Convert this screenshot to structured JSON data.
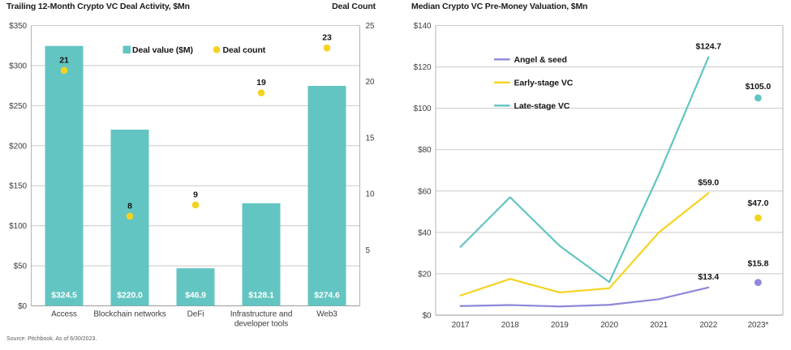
{
  "page": {
    "source_note": "Source: Pitchbook. As of 6/30/2023."
  },
  "colors": {
    "teal": "#63C5C1",
    "yellow": "#F4D320",
    "purple": "#8E87DA",
    "grid": "#C9C9C9",
    "plot_border": "#B3B3B3",
    "axis_line": "#9A9A9A"
  },
  "chart_data": [
    {
      "type": "bar",
      "title": "Trailing 12-Month Crypto VC Deal Activity, $Mn",
      "right_axis_label": "Deal Count",
      "categories": [
        "Access",
        "Blockchain networks",
        "DeFi",
        "Infrastructure and\ndeveloper tools",
        "Web3"
      ],
      "left_axis": {
        "min": 0,
        "max": 350,
        "ticks": [
          "$350",
          "$300",
          "$250",
          "$200",
          "$150",
          "$100",
          "$50",
          "$0"
        ]
      },
      "right_axis": {
        "min": 0,
        "max": 25,
        "ticks": [
          "25",
          "20",
          "15",
          "10",
          "5"
        ]
      },
      "series": [
        {
          "name": "Deal value ($M)",
          "kind": "bar",
          "axis": "left",
          "color": "teal",
          "values": [
            324.5,
            220.0,
            46.9,
            128.1,
            274.6
          ],
          "value_labels": [
            "$324.5",
            "$220.0",
            "$46.9",
            "$128.1",
            "$274.6"
          ]
        },
        {
          "name": "Deal count",
          "kind": "point",
          "axis": "right",
          "color": "yellow",
          "values": [
            21,
            8,
            9,
            19,
            23
          ],
          "value_labels": [
            "21",
            "8",
            "9",
            "19",
            "23"
          ]
        }
      ],
      "legend": [
        {
          "label": "Deal value ($M)",
          "swatch": "square",
          "color": "teal"
        },
        {
          "label": "Deal count",
          "swatch": "dot",
          "color": "yellow"
        }
      ],
      "legend_position": "top-center-inside",
      "grid": true
    },
    {
      "type": "line",
      "title": "Median Crypto VC Pre-Money Valuation, $Mn",
      "x_labels": [
        "2017",
        "2018",
        "2019",
        "2020",
        "2021",
        "2022",
        "2023*"
      ],
      "y_axis": {
        "min": 0,
        "max": 140,
        "ticks": [
          "$140",
          "$120",
          "$100",
          "$80",
          "$60",
          "$40",
          "$20",
          "$0"
        ]
      },
      "series": [
        {
          "name": "Angel & seed",
          "color": "purple",
          "line_values": [
            4.4,
            4.9,
            4.2,
            5.0,
            7.7,
            13.4
          ],
          "end_label": "$13.4",
          "dot_value": 15.8,
          "dot_label": "$15.8"
        },
        {
          "name": "Early-stage VC",
          "color": "yellow",
          "line_values": [
            9.5,
            17.5,
            11.0,
            13.0,
            40.0,
            59.0
          ],
          "end_label": "$59.0",
          "dot_value": 47.0,
          "dot_label": "$47.0"
        },
        {
          "name": "Late-stage VC",
          "color": "teal",
          "line_values": [
            33.0,
            57.0,
            33.5,
            16.0,
            68.0,
            124.7
          ],
          "end_label": "$124.7",
          "dot_value": 105.0,
          "dot_label": "$105.0"
        }
      ],
      "legend": [
        {
          "label": "Angel & seed",
          "swatch": "line",
          "color": "purple"
        },
        {
          "label": "Early-stage VC",
          "swatch": "line",
          "color": "yellow"
        },
        {
          "label": "Late-stage VC",
          "swatch": "line",
          "color": "teal"
        }
      ],
      "legend_position": "upper-left-inside",
      "grid": true
    }
  ]
}
